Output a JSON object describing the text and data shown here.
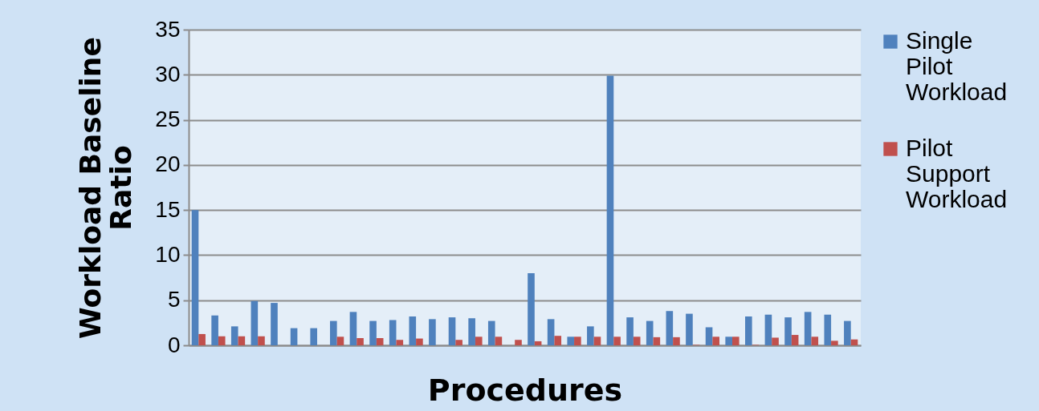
{
  "chart_data": {
    "type": "bar",
    "xlabel": "Procedures",
    "ylabel": "Workload Baseline Ratio",
    "categories": [
      null,
      null,
      null,
      null,
      null,
      null,
      null,
      null,
      null,
      null,
      null,
      null,
      null,
      null,
      null,
      null,
      null,
      null,
      null,
      null,
      null,
      null,
      null,
      null,
      null,
      null,
      null,
      null,
      null,
      null,
      null,
      null,
      null,
      null
    ],
    "series": [
      {
        "name": "Single Pilot Workload",
        "color": "#4f81bd",
        "values": [
          15,
          3.3,
          2.1,
          4.9,
          4.7,
          1.9,
          1.9,
          2.7,
          3.7,
          2.7,
          2.8,
          3.2,
          2.9,
          3.1,
          3.0,
          2.7,
          null,
          8.0,
          2.9,
          0.95,
          2.1,
          29.9,
          3.1,
          2.7,
          3.8,
          3.5,
          2.0,
          0.95,
          3.2,
          3.4,
          3.1,
          3.7,
          3.4,
          2.7
        ]
      },
      {
        "name": "Pilot Support Workload",
        "color": "#c0504d",
        "values": [
          1.25,
          1.0,
          1.0,
          1.0,
          null,
          null,
          null,
          0.95,
          0.8,
          0.8,
          0.6,
          0.75,
          null,
          0.6,
          0.95,
          0.95,
          0.6,
          0.45,
          1.05,
          0.95,
          0.95,
          0.95,
          0.95,
          0.9,
          0.9,
          0.05,
          0.95,
          0.95,
          0.05,
          0.85,
          1.15,
          0.95,
          0.5,
          0.65
        ]
      }
    ],
    "ylim": [
      0,
      35
    ],
    "yticks": [
      0,
      5,
      10,
      15,
      20,
      25,
      30,
      35
    ],
    "grid": "y",
    "legend": "right",
    "tick_labels": "y"
  }
}
